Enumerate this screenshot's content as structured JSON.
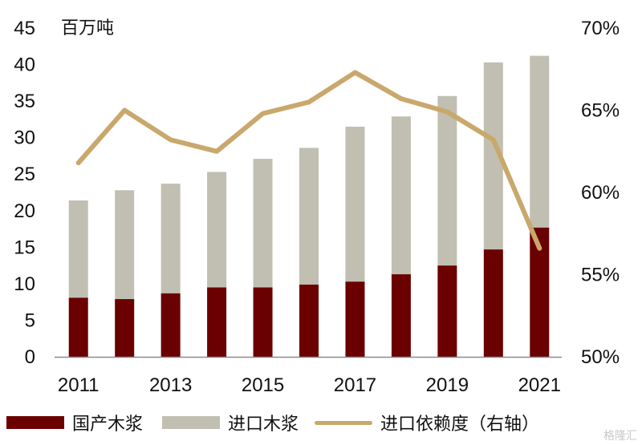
{
  "chart_data": {
    "type": "bar",
    "stacked": true,
    "unit_label": "百万吨",
    "categories": [
      "2011",
      "2012",
      "2013",
      "2014",
      "2015",
      "2016",
      "2017",
      "2018",
      "2019",
      "2020",
      "2021"
    ],
    "x_tick_labels": [
      "2011",
      "2013",
      "2015",
      "2017",
      "2019",
      "2021"
    ],
    "series": [
      {
        "name": "国产木浆",
        "kind": "bar",
        "axis": "left",
        "color": "#6b0000",
        "values": [
          8.1,
          7.9,
          8.7,
          9.5,
          9.5,
          9.9,
          10.3,
          11.3,
          12.5,
          14.7,
          17.7
        ]
      },
      {
        "name": "进口木浆",
        "kind": "bar",
        "axis": "left",
        "color": "#c0bfb1",
        "values": [
          13.3,
          14.9,
          15.0,
          15.8,
          17.6,
          18.7,
          21.2,
          21.6,
          23.2,
          25.6,
          23.5
        ]
      },
      {
        "name": "进口依赖度（右轴）",
        "kind": "line",
        "axis": "right",
        "color": "#c9a86c",
        "values": [
          61.8,
          65.0,
          63.2,
          62.5,
          64.8,
          65.5,
          67.3,
          65.7,
          64.9,
          63.2,
          56.6
        ]
      }
    ],
    "y_left": {
      "min": 0,
      "max": 45,
      "ticks": [
        "0",
        "5",
        "10",
        "15",
        "20",
        "25",
        "30",
        "35",
        "40",
        "45"
      ]
    },
    "y_right": {
      "min": 50,
      "max": 70,
      "ticks": [
        "50%",
        "55%",
        "60%",
        "65%",
        "70%"
      ]
    },
    "grid": false,
    "legend_position": "bottom"
  },
  "watermark": "格隆汇"
}
